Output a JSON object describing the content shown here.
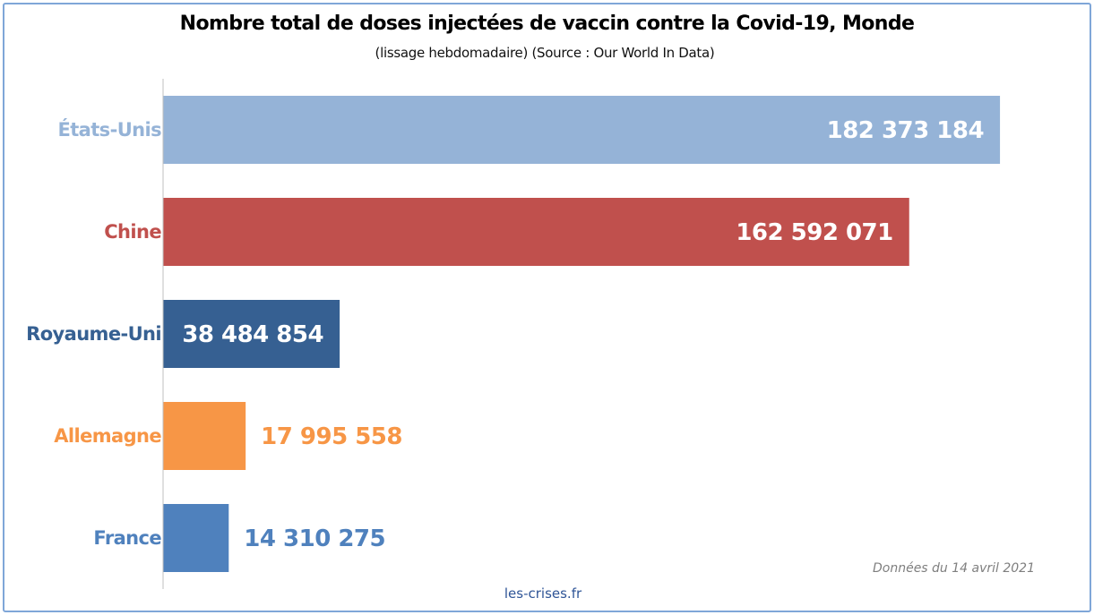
{
  "chart_data": {
    "type": "bar",
    "orientation": "horizontal",
    "title": "Nombre total de doses injectées de vaccin contre la Covid-19, Monde",
    "subtitle": "(lissage hebdomadaire) (Source : Our World In Data)",
    "categories": [
      "États-Unis",
      "Chine",
      "Royaume-Uni",
      "Allemagne",
      "France"
    ],
    "values": [
      182373184,
      162592071,
      38484854,
      17995558,
      14310275
    ],
    "value_labels": [
      "182 373 184",
      "162 592 071",
      "38 484 854",
      "17 995 558",
      "14 310 275"
    ],
    "colors": [
      "#95b3d7",
      "#c0504d",
      "#366092",
      "#f79646",
      "#4f81bd"
    ],
    "xlim": [
      0,
      189000000
    ],
    "grid": false,
    "legend": "none",
    "xlabel": "",
    "ylabel": ""
  },
  "footer": {
    "note": "Données du 14 avril 2021",
    "credit": "les-crises.fr"
  }
}
